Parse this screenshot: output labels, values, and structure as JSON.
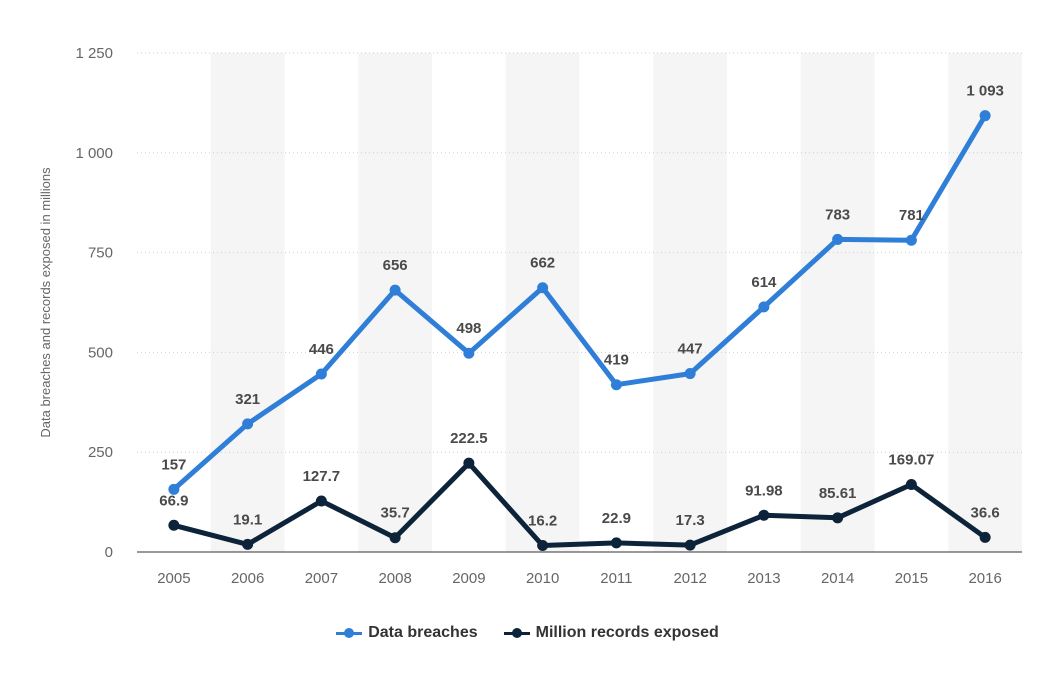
{
  "chart_data": {
    "type": "line",
    "categories": [
      "2005",
      "2006",
      "2007",
      "2008",
      "2009",
      "2010",
      "2011",
      "2012",
      "2013",
      "2014",
      "2015",
      "2016"
    ],
    "ylabel": "Data breaches and records exposed in millions",
    "ylim": [
      0,
      1250
    ],
    "yticks": [
      0,
      250,
      500,
      750,
      1000,
      1250
    ],
    "ytick_labels": [
      "0",
      "250",
      "500",
      "750",
      "1 000",
      "1 250"
    ],
    "grid": "horizontal dotted",
    "legend_position": "bottom-center",
    "series": [
      {
        "name": "Data breaches",
        "color": "#2f7ed8",
        "values": [
          157,
          321,
          446,
          656,
          498,
          662,
          419,
          447,
          614,
          783,
          781,
          1093
        ],
        "labels": [
          "157",
          "321",
          "446",
          "656",
          "498",
          "662",
          "419",
          "447",
          "614",
          "783",
          "781",
          "1 093"
        ]
      },
      {
        "name": "Million records exposed",
        "color": "#0d233a",
        "values": [
          66.9,
          19.1,
          127.7,
          35.7,
          222.5,
          16.2,
          22.9,
          17.3,
          91.98,
          85.61,
          169.07,
          36.6
        ],
        "labels": [
          "66.9",
          "19.1",
          "127.7",
          "35.7",
          "222.5",
          "16.2",
          "22.9",
          "17.3",
          "91.98",
          "85.61",
          "169.07",
          "36.6"
        ]
      }
    ]
  }
}
